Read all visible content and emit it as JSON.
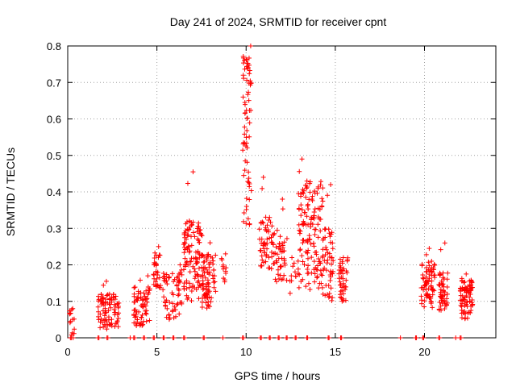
{
  "chart_data": {
    "type": "scatter",
    "title": "Day 241 of 2024, SRMTID for receiver cpnt",
    "xlabel": "GPS time / hours",
    "ylabel": "SRMTID / TECUs",
    "xlim": [
      0,
      24
    ],
    "ylim": [
      0,
      0.8
    ],
    "grid": true,
    "marker": "+",
    "color": "#ff0000",
    "x_ticks": [
      0,
      5,
      10,
      15,
      20
    ],
    "x_tick_labels": [
      "0",
      "5",
      "10",
      "15",
      "20"
    ],
    "y_ticks": [
      0,
      0.1,
      0.2,
      0.3,
      0.4,
      0.5,
      0.6,
      0.7,
      0.8
    ],
    "y_tick_labels": [
      "0",
      "0.1",
      "0.2",
      "0.3",
      "0.4",
      "0.5",
      "0.6",
      "0.7",
      "0.8"
    ],
    "clusters": [
      {
        "x": [
          0.1,
          0.4
        ],
        "y": [
          0.0,
          0.08
        ],
        "n": 12,
        "peak": 0.08
      },
      {
        "x": [
          1.7,
          2.9
        ],
        "y": [
          0.02,
          0.12
        ],
        "n": 90,
        "peak": 0.155
      },
      {
        "x": [
          3.7,
          4.6
        ],
        "y": [
          0.03,
          0.14
        ],
        "n": 70,
        "peak": 0.17
      },
      {
        "x": [
          4.8,
          5.2
        ],
        "y": [
          0.13,
          0.23
        ],
        "n": 30,
        "peak": 0.25
      },
      {
        "x": [
          5.3,
          6.4
        ],
        "y": [
          0.05,
          0.18
        ],
        "n": 60,
        "peak": 0.2
      },
      {
        "x": [
          6.5,
          7.5
        ],
        "y": [
          0.1,
          0.32
        ],
        "n": 110,
        "peak": 0.455
      },
      {
        "x": [
          7.5,
          8.3
        ],
        "y": [
          0.08,
          0.23
        ],
        "n": 80,
        "peak": 0.28
      },
      {
        "x": [
          8.6,
          8.9
        ],
        "y": [
          0.15,
          0.22
        ],
        "n": 10,
        "peak": 0.23
      },
      {
        "x": [
          9.8,
          10.3
        ],
        "y": [
          0.3,
          0.78
        ],
        "n": 70,
        "peak": 0.8
      },
      {
        "x": [
          10.7,
          11.6
        ],
        "y": [
          0.18,
          0.34
        ],
        "n": 60,
        "peak": 0.44
      },
      {
        "x": [
          11.6,
          12.3
        ],
        "y": [
          0.15,
          0.3
        ],
        "n": 40,
        "peak": 0.38
      },
      {
        "x": [
          12.4,
          12.8
        ],
        "y": [
          0.12,
          0.2
        ],
        "n": 8,
        "peak": 0.22
      },
      {
        "x": [
          12.9,
          14.3
        ],
        "y": [
          0.12,
          0.43
        ],
        "n": 140,
        "peak": 0.49
      },
      {
        "x": [
          14.3,
          14.9
        ],
        "y": [
          0.1,
          0.3
        ],
        "n": 50,
        "peak": 0.42
      },
      {
        "x": [
          15.2,
          15.7
        ],
        "y": [
          0.1,
          0.22
        ],
        "n": 40,
        "peak": 0.22
      },
      {
        "x": [
          19.8,
          20.6
        ],
        "y": [
          0.08,
          0.21
        ],
        "n": 70,
        "peak": 0.245
      },
      {
        "x": [
          20.8,
          21.3
        ],
        "y": [
          0.07,
          0.18
        ],
        "n": 50,
        "peak": 0.26
      },
      {
        "x": [
          22.0,
          22.7
        ],
        "y": [
          0.05,
          0.16
        ],
        "n": 80,
        "peak": 0.175
      }
    ],
    "zero_points_x": [
      0.15,
      0.2,
      0.3,
      1.7,
      1.75,
      2.2,
      2.25,
      3.5,
      3.7,
      3.75,
      4.25,
      4.3,
      4.8,
      4.85,
      5.35,
      5.4,
      5.9,
      5.95,
      6.5,
      6.55,
      7.6,
      7.65,
      8.7,
      9.8,
      9.85,
      10.8,
      10.85,
      11.3,
      11.35,
      11.8,
      11.85,
      12.25,
      12.3,
      12.75,
      12.8,
      13.4,
      13.45,
      14.6,
      14.65,
      15.3,
      15.35,
      18.65,
      19.5,
      19.55,
      19.9,
      19.95,
      20.8,
      20.85,
      21.75,
      22.0,
      22.05
    ]
  }
}
